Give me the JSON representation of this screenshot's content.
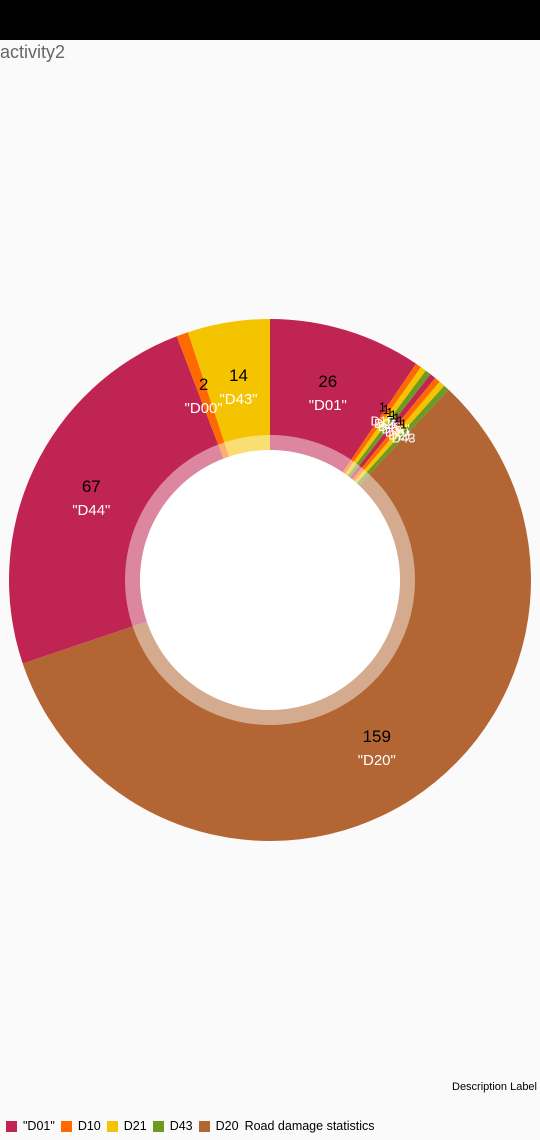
{
  "app": {
    "title": "activity2"
  },
  "description_label": "Description Label",
  "chart_data": {
    "type": "pie",
    "donut": true,
    "slices": [
      {
        "label": "\"D01\"",
        "value": 26,
        "color": "#c02452"
      },
      {
        "label": "D10",
        "value": 1,
        "color": "#ff6a00"
      },
      {
        "label": "D21",
        "value": 1,
        "color": "#f5c400"
      },
      {
        "label": "D43",
        "value": 1,
        "color": "#6e9a22"
      },
      {
        "label": "\"D01\"",
        "value": 1,
        "color": "#c02452"
      },
      {
        "label": "D10",
        "value": 1,
        "color": "#ff6a00"
      },
      {
        "label": "D21",
        "value": 1,
        "color": "#f5c400"
      },
      {
        "label": "D43",
        "value": 1,
        "color": "#6e9a22"
      },
      {
        "label": "\"D20\"",
        "value": 159,
        "color": "#b36633"
      },
      {
        "label": "\"D44\"",
        "value": 67,
        "color": "#c02452"
      },
      {
        "label": "\"D00\"",
        "value": 2,
        "color": "#ff6a00"
      },
      {
        "label": "\"D43\"",
        "value": 14,
        "color": "#f5c400"
      }
    ],
    "legend": {
      "position": "bottom-left",
      "entries": [
        {
          "label": "\"D01\"",
          "color": "#c02452"
        },
        {
          "label": "D10",
          "color": "#ff6a00"
        },
        {
          "label": "D21",
          "color": "#f5c400"
        },
        {
          "label": "D43",
          "color": "#6e9a22"
        },
        {
          "label": "D20",
          "color": "#b36633"
        }
      ],
      "extra_text": "Road damage statistics"
    }
  }
}
